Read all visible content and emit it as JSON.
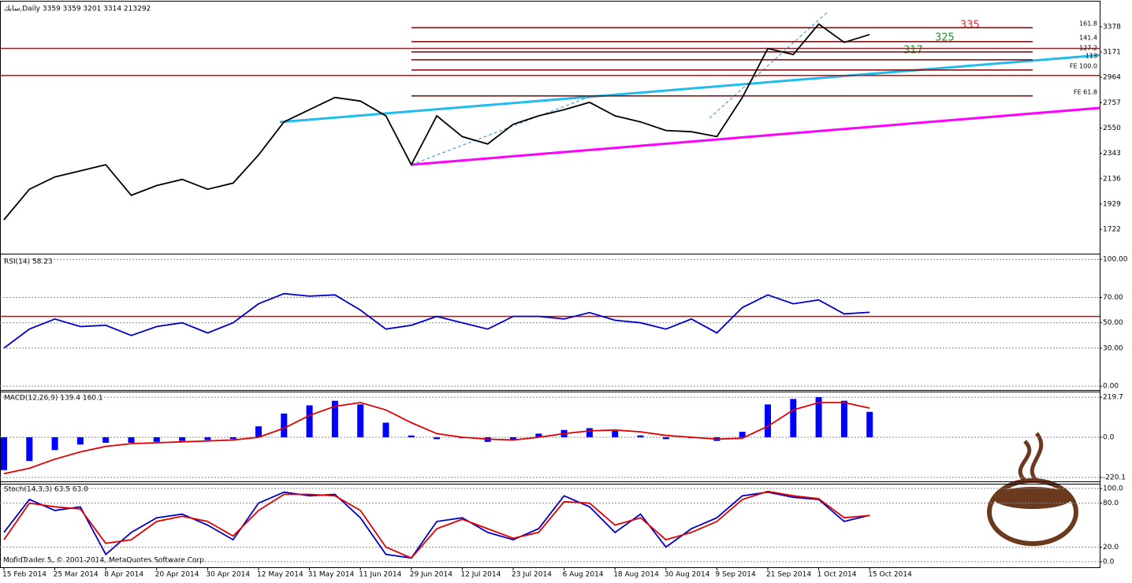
{
  "chart_data": [
    {
      "type": "line",
      "title": "سابك,Daily  3359 3359 3201 3314  213292",
      "ylim": [
        1536,
        3564
      ],
      "yticks": [
        3378,
        3171,
        2964,
        2757,
        2550,
        2343,
        2136,
        1929,
        1722
      ],
      "series": [
        {
          "color": "#000000",
          "values": [
            1800,
            2050,
            2150,
            2200,
            2250,
            2000,
            2080,
            2130,
            2050,
            2100,
            2330,
            2600,
            2700,
            2800,
            2770,
            2650,
            2250,
            2650,
            2480,
            2420,
            2580,
            2650,
            2700,
            2760,
            2650,
            2600,
            2530,
            2520,
            2480,
            2800,
            3200,
            3150,
            3400,
            3250,
            3314
          ]
        }
      ],
      "hlines": {
        "color": "#e00000",
        "values": [
          3200,
          2980
        ]
      },
      "levels": {
        "color": "#800000",
        "items": [
          {
            "label": "161.8",
            "value": 3370
          },
          {
            "label": "141.4",
            "value": 3256
          },
          {
            "label": "127.2",
            "value": 3172
          },
          {
            "label": "113",
            "value": 3108
          },
          {
            "label": "FE 100.0",
            "value": 3024
          },
          {
            "label": "FE 61.8",
            "value": 2812
          }
        ]
      },
      "annotations": [
        "335",
        "325",
        "317"
      ]
    },
    {
      "type": "line",
      "title": "RSI(14) 58.23",
      "ylim": [
        -3,
        102
      ],
      "grid": true,
      "yticks": [
        {
          "value": 100,
          "label": "100.00"
        },
        {
          "value": 70,
          "label": "70.00"
        },
        {
          "value": 50,
          "label": "50.00"
        },
        {
          "value": 30,
          "label": "30.00"
        },
        {
          "value": 0,
          "label": "0.00"
        }
      ],
      "series": [
        {
          "color": "#0000cc",
          "values": [
            30,
            45,
            53,
            47,
            48,
            40,
            47,
            50,
            42,
            50,
            65,
            73,
            71,
            72,
            60,
            45,
            48,
            55,
            50,
            45,
            55,
            55,
            53,
            58,
            52,
            50,
            45,
            53,
            42,
            62,
            72,
            65,
            68,
            57,
            58.23
          ]
        }
      ],
      "hlines": {
        "color": "#e00000",
        "values": [
          55
        ]
      }
    },
    {
      "type": "bar",
      "title": "MACD(12,26,9) 139.4 160.1",
      "ylim": [
        -246,
        242
      ],
      "grid": true,
      "yticks": [
        219.7,
        {
          "value": 0,
          "label": "0.0"
        },
        -220.1
      ],
      "series": [
        {
          "kind": "bar",
          "color": "#0000ff",
          "values": [
            -180,
            -130,
            -70,
            -40,
            -30,
            -30,
            -25,
            -20,
            -15,
            -10,
            60,
            130,
            175,
            200,
            180,
            80,
            10,
            -10,
            -5,
            -25,
            -15,
            20,
            40,
            50,
            35,
            10,
            -10,
            -5,
            -20,
            30,
            180,
            210,
            220,
            200,
            139.4
          ]
        },
        {
          "kind": "line",
          "color": "#e00000",
          "values": [
            -200,
            -170,
            -120,
            -80,
            -50,
            -35,
            -30,
            -25,
            -20,
            -15,
            0,
            50,
            120,
            170,
            190,
            150,
            80,
            20,
            0,
            -10,
            -15,
            0,
            20,
            35,
            40,
            30,
            10,
            0,
            -10,
            -5,
            60,
            150,
            190,
            190,
            160.1
          ]
        }
      ]
    },
    {
      "type": "line",
      "title": "Stoch(14,3,3) 63.5 63.0",
      "ylim": [
        -5.4,
        105.4
      ],
      "grid": true,
      "yticks": [
        {
          "value": 100,
          "label": "100.0"
        },
        {
          "value": 80,
          "label": "80.0"
        },
        {
          "value": 20,
          "label": "20.0"
        },
        {
          "value": 0,
          "label": "0.0"
        }
      ],
      "series": [
        {
          "color": "#0000cc",
          "values": [
            40,
            85,
            70,
            75,
            10,
            40,
            60,
            65,
            50,
            30,
            80,
            95,
            90,
            92,
            60,
            10,
            5,
            55,
            60,
            40,
            30,
            45,
            90,
            75,
            40,
            65,
            20,
            45,
            60,
            90,
            95,
            88,
            85,
            55,
            63.5
          ]
        },
        {
          "color": "#e00000",
          "values": [
            30,
            80,
            75,
            72,
            25,
            30,
            55,
            62,
            55,
            35,
            70,
            92,
            92,
            90,
            70,
            20,
            5,
            45,
            58,
            45,
            32,
            40,
            82,
            80,
            50,
            60,
            30,
            40,
            55,
            85,
            96,
            90,
            86,
            60,
            63.0
          ]
        }
      ],
      "categories": [
        "15 Feb 2014",
        null,
        "25 Mar 2014",
        null,
        "8 Apr 2014",
        null,
        "20 Apr 2014",
        null,
        "30 Apr 2014",
        null,
        "12 May 2014",
        null,
        "31 May 2014",
        null,
        "11 Jun 2014",
        null,
        "29 Jun 2014",
        null,
        "12 Jul 2014",
        null,
        "23 Jul 2014",
        null,
        "6 Aug 2014",
        null,
        "18 Aug 2014",
        null,
        "30 Aug 2014",
        null,
        "9 Sep 2014",
        null,
        "21 Sep 2014",
        null,
        "1 Oct 2014",
        null,
        "15 Oct 2014"
      ]
    }
  ],
  "footer": "MofidTrader 5, © 2001-2014, MetaQuotes Software Corp."
}
